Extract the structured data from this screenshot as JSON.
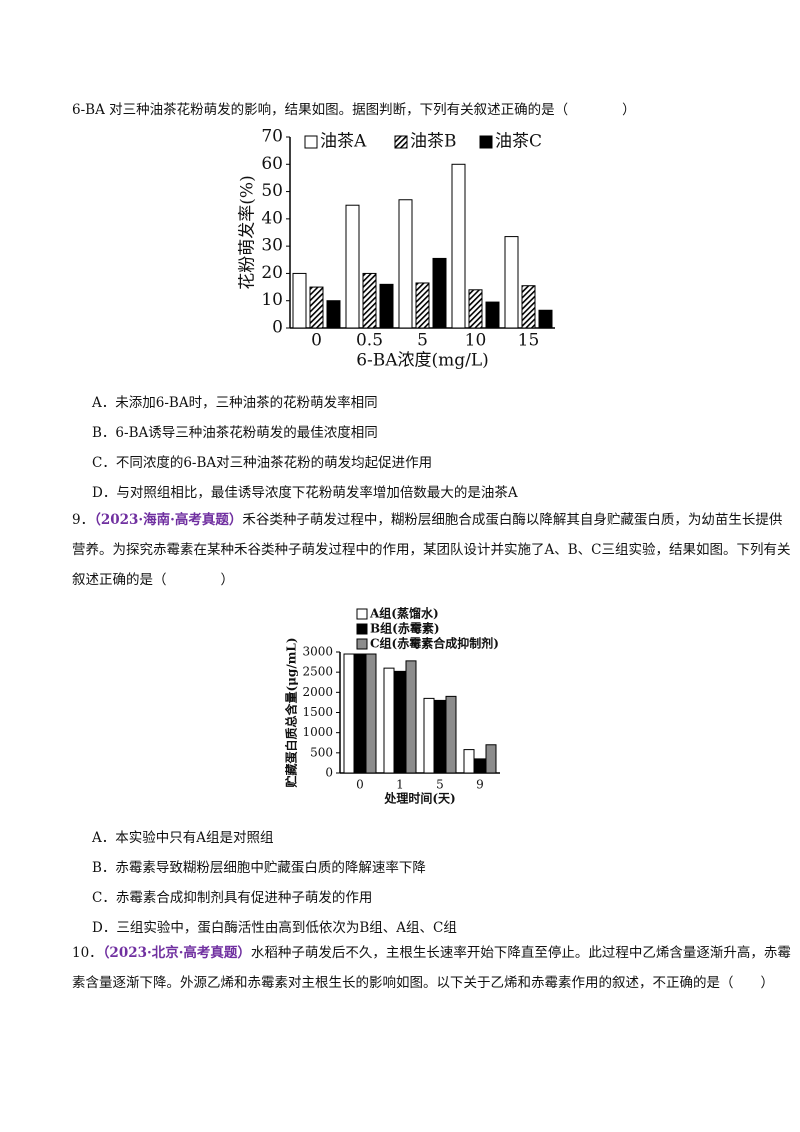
{
  "q8": {
    "stem": "6-BA 对三种油茶花粉萌发的影响，结果如图。据图判断，下列有关叙述正确的是（　　　　）",
    "options": [
      "A．未添加6-BA时，三种油茶的花粉萌发率相同",
      "B．6-BA诱导三种油茶花粉萌发的最佳浓度相同",
      "C．不同浓度的6-BA对三种油茶花粉的萌发均起促进作用",
      "D．与对照组相比，最佳诱导浓度下花粉萌发率增加倍数最大的是油茶A"
    ]
  },
  "q9": {
    "number": "9．",
    "source": "（2023·海南·高考真题）",
    "stem": "禾谷类种子萌发过程中，糊粉层细胞合成蛋白酶以降解其自身贮藏蛋白质，为幼苗生长提供营养。为探究赤霉素在某种禾谷类种子萌发过程中的作用，某团队设计并实施了A、B、C三组实验，结果如图。下列有关叙述正确的是（　　　　）",
    "options": [
      "A．本实验中只有A组是对照组",
      "B．赤霉素导致糊粉层细胞中贮藏蛋白质的降解速率下降",
      "C．赤霉素合成抑制剂具有促进种子萌发的作用",
      "D．三组实验中，蛋白酶活性由高到低依次为B组、A组、C组"
    ]
  },
  "q10": {
    "number": "10．",
    "source": "（2023·北京·高考真题）",
    "stem": "水稻种子萌发后不久，主根生长速率开始下降直至停止。此过程中乙烯含量逐渐升高，赤霉素含量逐渐下降。外源乙烯和赤霉素对主根生长的影响如图。以下关于乙烯和赤霉素作用的叙述，不正确的是（　　）"
  },
  "chart_data": [
    {
      "type": "bar",
      "y_label": "花粉萌发率(%)",
      "x_label": "6-BA浓度(mg/L)",
      "categories": [
        "0",
        "0.5",
        "5",
        "10",
        "15"
      ],
      "series": [
        {
          "name": "油茶A",
          "color": "#ffffff",
          "values": [
            20,
            45,
            47,
            60,
            33.5
          ]
        },
        {
          "name": "油茶B",
          "color": "#000000",
          "hatch": true,
          "values": [
            15,
            20,
            16.5,
            14,
            15.5
          ]
        },
        {
          "name": "油茶C",
          "color": "#000000",
          "values": [
            10,
            16,
            25.5,
            9.5,
            6.5
          ]
        }
      ],
      "ylim": [
        0,
        70
      ],
      "yticks": [
        0,
        10,
        20,
        30,
        40,
        50,
        60,
        70
      ],
      "legend": "top"
    },
    {
      "type": "bar",
      "y_label": "贮藏蛋白质总含量(μg/mL)",
      "x_label": "处理时间(天)",
      "categories": [
        "0",
        "1",
        "5",
        "9"
      ],
      "series": [
        {
          "name": "A组(蒸馏水)",
          "color": "#ffffff",
          "values": [
            2950,
            2600,
            1850,
            580
          ]
        },
        {
          "name": "B组(赤霉素)",
          "color": "#000000",
          "values": [
            2950,
            2520,
            1800,
            350
          ]
        },
        {
          "name": "C组(赤霉素合成抑制剂)",
          "color": "#8c8c8c",
          "values": [
            2950,
            2780,
            1900,
            700
          ]
        }
      ],
      "ylim": [
        0,
        3000
      ],
      "yticks": [
        0,
        500,
        1000,
        1500,
        2000,
        2500,
        3000
      ],
      "legend": "top"
    }
  ]
}
